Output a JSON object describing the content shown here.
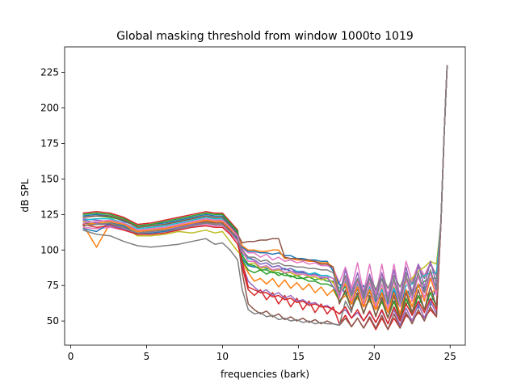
{
  "chart_data": {
    "type": "line",
    "title": "Global masking threshold from window 1000to 1019",
    "xlabel": "frequencies (bark)",
    "ylabel": "dB SPL",
    "xlim": [
      -0.4,
      26.0
    ],
    "ylim": [
      33,
      243
    ],
    "x_ticks": [
      0,
      5,
      10,
      15,
      20,
      25
    ],
    "y_ticks": [
      50,
      75,
      100,
      125,
      150,
      175,
      200,
      225
    ],
    "grid": false,
    "legend": "none",
    "colors": [
      "#1f77b4",
      "#ff7f0e",
      "#2ca02c",
      "#d62728",
      "#9467bd",
      "#8c564b",
      "#e377c2",
      "#7f7f7f",
      "#bcbd22",
      "#17becf"
    ],
    "x": [
      0.8,
      1.7,
      2.6,
      3.5,
      4.4,
      5.3,
      6.2,
      7.1,
      8.0,
      8.9,
      9.5,
      10.0,
      10.5,
      11.0,
      11.3,
      11.7,
      12.1,
      12.5,
      12.9,
      13.3,
      13.7,
      14.1,
      14.5,
      14.9,
      15.3,
      15.7,
      16.1,
      16.5,
      16.9,
      17.3,
      17.7,
      18.1,
      18.5,
      18.9,
      19.3,
      19.7,
      20.1,
      20.5,
      20.9,
      21.3,
      21.7,
      22.1,
      22.5,
      22.9,
      23.3,
      23.7,
      24.1,
      24.4,
      24.6,
      24.8
    ],
    "series": [
      {
        "values": [
          124,
          125,
          124,
          120,
          117,
          118,
          119,
          121,
          123,
          125,
          124,
          124,
          118,
          112,
          94,
          89,
          88,
          88,
          87,
          86,
          86,
          87,
          85,
          84,
          84,
          83,
          83,
          82,
          82,
          80,
          76,
          69,
          74,
          68,
          75,
          66,
          72,
          64,
          70,
          63,
          70,
          61,
          72,
          59,
          75,
          61,
          75,
          120,
          180,
          230
        ]
      },
      {
        "values": [
          118,
          102,
          119,
          117,
          113,
          114,
          115,
          117,
          118,
          120,
          120,
          121,
          116,
          110,
          92,
          84,
          78,
          80,
          76,
          80,
          74,
          79,
          73,
          77,
          72,
          76,
          70,
          74,
          68,
          72,
          64,
          68,
          62,
          66,
          60,
          64,
          58,
          63,
          57,
          63,
          56,
          63,
          64,
          66,
          68,
          70,
          72,
          120,
          180,
          230
        ]
      },
      {
        "values": [
          123,
          124,
          123,
          121,
          116,
          117,
          118,
          120,
          122,
          124,
          123,
          123,
          117,
          111,
          93,
          86,
          84,
          86,
          83,
          85,
          82,
          84,
          81,
          82,
          80,
          81,
          79,
          80,
          78,
          78,
          70,
          74,
          67,
          72,
          65,
          70,
          63,
          69,
          61,
          68,
          60,
          70,
          72,
          74,
          78,
          80,
          80,
          120,
          180,
          230
        ]
      },
      {
        "values": [
          126,
          127,
          126,
          123,
          118,
          119,
          121,
          123,
          125,
          127,
          126,
          126,
          120,
          114,
          88,
          72,
          68,
          72,
          65,
          70,
          62,
          68,
          60,
          66,
          58,
          64,
          56,
          62,
          55,
          60,
          48,
          54,
          46,
          52,
          45,
          52,
          44,
          52,
          44,
          52,
          45,
          54,
          50,
          56,
          52,
          58,
          53,
          120,
          180,
          230
        ]
      },
      {
        "values": [
          122,
          121,
          120,
          118,
          114,
          115,
          116,
          118,
          120,
          122,
          121,
          121,
          116,
          109,
          90,
          78,
          74,
          70,
          72,
          68,
          70,
          66,
          68,
          64,
          65,
          62,
          63,
          60,
          61,
          58,
          55,
          58,
          52,
          56,
          50,
          56,
          49,
          57,
          48,
          58,
          47,
          59,
          50,
          62,
          52,
          64,
          55,
          120,
          180,
          230
        ]
      },
      {
        "values": [
          119,
          118,
          118,
          115,
          112,
          113,
          114,
          116,
          118,
          120,
          119,
          119,
          114,
          108,
          84,
          62,
          58,
          55,
          57,
          53,
          55,
          51,
          53,
          50,
          52,
          49,
          51,
          48,
          50,
          48,
          47,
          52,
          46,
          52,
          45,
          53,
          45,
          54,
          44,
          55,
          45,
          56,
          48,
          58,
          50,
          60,
          53,
          120,
          180,
          230
        ]
      },
      {
        "values": [
          116,
          115,
          116,
          114,
          111,
          112,
          113,
          114,
          116,
          118,
          117,
          117,
          112,
          106,
          101,
          98,
          98,
          95,
          97,
          93,
          95,
          92,
          93,
          91,
          92,
          90,
          91,
          89,
          89,
          87,
          77,
          88,
          73,
          91,
          70,
          90,
          68,
          90,
          67,
          90,
          67,
          92,
          78,
          90,
          82,
          91,
          82,
          120,
          180,
          230
        ]
      },
      {
        "values": [
          114,
          111,
          110,
          106,
          103,
          102,
          103,
          104,
          106,
          108,
          104,
          105,
          100,
          93,
          72,
          58,
          55,
          56,
          53,
          54,
          51,
          52,
          50,
          51,
          49,
          50,
          48,
          49,
          48,
          48,
          47,
          64,
          56,
          78,
          70,
          82,
          72,
          83,
          73,
          82,
          74,
          84,
          76,
          88,
          80,
          90,
          82,
          120,
          180,
          230
        ]
      },
      {
        "values": [
          120,
          118,
          119,
          116,
          110,
          110,
          111,
          113,
          112,
          114,
          112,
          113,
          106,
          99,
          96,
          90,
          91,
          87,
          88,
          85,
          86,
          84,
          84,
          82,
          83,
          81,
          81,
          79,
          80,
          77,
          68,
          78,
          66,
          76,
          64,
          74,
          62,
          73,
          61,
          74,
          63,
          78,
          80,
          85,
          88,
          92,
          90,
          120,
          180,
          230
        ]
      },
      {
        "values": [
          121,
          122,
          122,
          119,
          115,
          116,
          117,
          119,
          121,
          123,
          122,
          122,
          117,
          111,
          97,
          94,
          93,
          90,
          91,
          88,
          89,
          86,
          87,
          85,
          85,
          83,
          84,
          82,
          82,
          80,
          73,
          78,
          68,
          76,
          66,
          74,
          64,
          72,
          63,
          73,
          62,
          75,
          76,
          80,
          82,
          84,
          84,
          120,
          180,
          230
        ]
      },
      {
        "values": [
          115,
          113,
          119,
          117,
          111,
          112,
          113,
          115,
          117,
          119,
          118,
          118,
          113,
          108,
          102,
          99,
          99,
          98,
          98,
          97,
          98,
          96,
          96,
          94,
          94,
          93,
          93,
          92,
          92,
          85,
          76,
          74,
          70,
          72,
          66,
          70,
          64,
          70,
          62,
          71,
          61,
          72,
          66,
          76,
          72,
          80,
          75,
          120,
          180,
          230
        ]
      },
      {
        "values": [
          117,
          119,
          120,
          118,
          113,
          114,
          115,
          117,
          119,
          121,
          120,
          120,
          115,
          110,
          103,
          100,
          100,
          99,
          99,
          100,
          100,
          94,
          94,
          93,
          93,
          92,
          92,
          91,
          91,
          88,
          70,
          76,
          62,
          74,
          60,
          72,
          58,
          70,
          56,
          70,
          55,
          72,
          60,
          76,
          64,
          80,
          68,
          120,
          180,
          230
        ]
      },
      {
        "values": [
          125,
          126,
          125,
          122,
          117,
          118,
          120,
          122,
          124,
          126,
          125,
          125,
          119,
          113,
          96,
          90,
          89,
          86,
          86,
          84,
          84,
          82,
          82,
          80,
          80,
          78,
          78,
          76,
          76,
          74,
          64,
          70,
          58,
          68,
          56,
          66,
          54,
          64,
          52,
          64,
          51,
          66,
          55,
          68,
          58,
          70,
          60,
          120,
          180,
          230
        ]
      },
      {
        "values": [
          118,
          116,
          117,
          114,
          111,
          111,
          112,
          114,
          116,
          117,
          116,
          116,
          111,
          104,
          92,
          74,
          72,
          70,
          70,
          67,
          68,
          65,
          66,
          63,
          64,
          61,
          62,
          60,
          60,
          58,
          55,
          60,
          52,
          58,
          50,
          57,
          49,
          58,
          48,
          60,
          50,
          62,
          54,
          64,
          56,
          66,
          58,
          120,
          180,
          230
        ]
      },
      {
        "values": [
          121,
          119,
          117,
          115,
          112,
          113,
          114,
          116,
          118,
          119,
          118,
          118,
          113,
          107,
          98,
          95,
          93,
          90,
          91,
          88,
          89,
          86,
          87,
          84,
          85,
          82,
          83,
          80,
          81,
          74,
          68,
          86,
          70,
          84,
          68,
          83,
          66,
          84,
          65,
          86,
          66,
          88,
          70,
          90,
          74,
          92,
          76,
          120,
          180,
          230
        ]
      },
      {
        "values": [
          123,
          124,
          124,
          121,
          116,
          117,
          118,
          120,
          122,
          124,
          123,
          123,
          117,
          111,
          105,
          106,
          106,
          107,
          107,
          108,
          108,
          95,
          94,
          94,
          93,
          93,
          92,
          90,
          90,
          88,
          62,
          72,
          58,
          70,
          55,
          68,
          53,
          67,
          52,
          68,
          52,
          70,
          56,
          72,
          58,
          74,
          60,
          120,
          180,
          230
        ]
      },
      {
        "values": [
          119,
          120,
          121,
          119,
          114,
          115,
          116,
          118,
          120,
          122,
          121,
          121,
          116,
          110,
          99,
          92,
          92,
          88,
          89,
          86,
          87,
          84,
          85,
          83,
          83,
          82,
          82,
          81,
          81,
          80,
          66,
          80,
          64,
          78,
          62,
          77,
          60,
          76,
          59,
          78,
          60,
          80,
          64,
          82,
          66,
          84,
          68,
          120,
          180,
          230
        ]
      },
      {
        "values": [
          117,
          118,
          119,
          116,
          112,
          113,
          114,
          115,
          117,
          119,
          118,
          118,
          113,
          107,
          100,
          95,
          95,
          92,
          93,
          90,
          91,
          89,
          89,
          88,
          88,
          87,
          87,
          86,
          86,
          84,
          70,
          82,
          68,
          80,
          66,
          80,
          65,
          80,
          64,
          80,
          64,
          82,
          68,
          84,
          70,
          86,
          72,
          120,
          180,
          230
        ]
      }
    ]
  }
}
